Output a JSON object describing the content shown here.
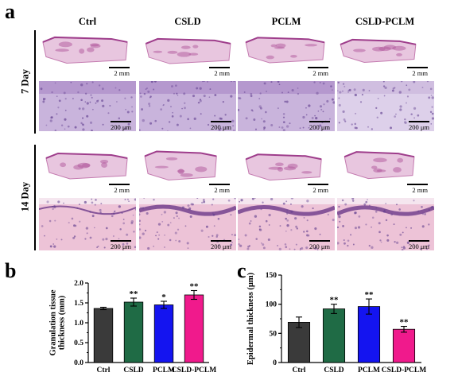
{
  "panel_a": {
    "letter": "a",
    "columns": [
      "Ctrl",
      "CSLD",
      "PCLM",
      "CSLD-PCLM"
    ],
    "rows": [
      {
        "label": "7 Day",
        "overview_scales": [
          "2 mm",
          "2 mm",
          "2 mm",
          "2 mm"
        ],
        "detail_scales": [
          "200 μm",
          "200 μm",
          "200 μm",
          "200 μm"
        ]
      },
      {
        "label": "14 Day",
        "overview_scales": [
          "2 mm",
          "2 mm",
          "2 mm",
          "2 mm"
        ],
        "detail_scales": [
          "200 μm",
          "200 μm",
          "200 μm",
          "200 μm"
        ]
      }
    ]
  },
  "chart_data": [
    {
      "panel": "b",
      "type": "bar",
      "categories": [
        "Ctrl",
        "CSLD",
        "PCLM",
        "CSLD-PCLM"
      ],
      "values": [
        1.36,
        1.52,
        1.45,
        1.7
      ],
      "errors": [
        0.03,
        0.1,
        0.09,
        0.11
      ],
      "significance": [
        "",
        "**",
        "*",
        "**"
      ],
      "colors": [
        "#3a3a3a",
        "#1f6b45",
        "#1414f0",
        "#f01a8c"
      ],
      "ylabel": "Granulation tissue thickness (mm)",
      "ylabel_lines": [
        "Granulation tissue",
        "thickness (mm)"
      ],
      "ylim": [
        0.0,
        2.0
      ],
      "yticks": [
        "0.0",
        "0.5",
        "1.0",
        "1.5",
        "2.0"
      ],
      "ytick_values": [
        0,
        0.5,
        1.0,
        1.5,
        2.0
      ],
      "minor_step": 0.25
    },
    {
      "panel": "c",
      "type": "bar",
      "categories": [
        "Ctrl",
        "CSLD",
        "PCLM",
        "CSLD-PCLM"
      ],
      "values": [
        69,
        92,
        96,
        57
      ],
      "errors": [
        9,
        8,
        13,
        5
      ],
      "significance": [
        "",
        "**",
        "**",
        "**"
      ],
      "colors": [
        "#3a3a3a",
        "#1f6b45",
        "#1414f0",
        "#f01a8c"
      ],
      "ylabel": "Epidermal thickness (μm)",
      "ylabel_lines": [
        "Epidermal thickness (μm)"
      ],
      "ylim": [
        0,
        150
      ],
      "yticks": [
        "0",
        "50",
        "100",
        "150"
      ],
      "ytick_values": [
        0,
        50,
        100,
        150
      ],
      "minor_step": 25
    }
  ]
}
